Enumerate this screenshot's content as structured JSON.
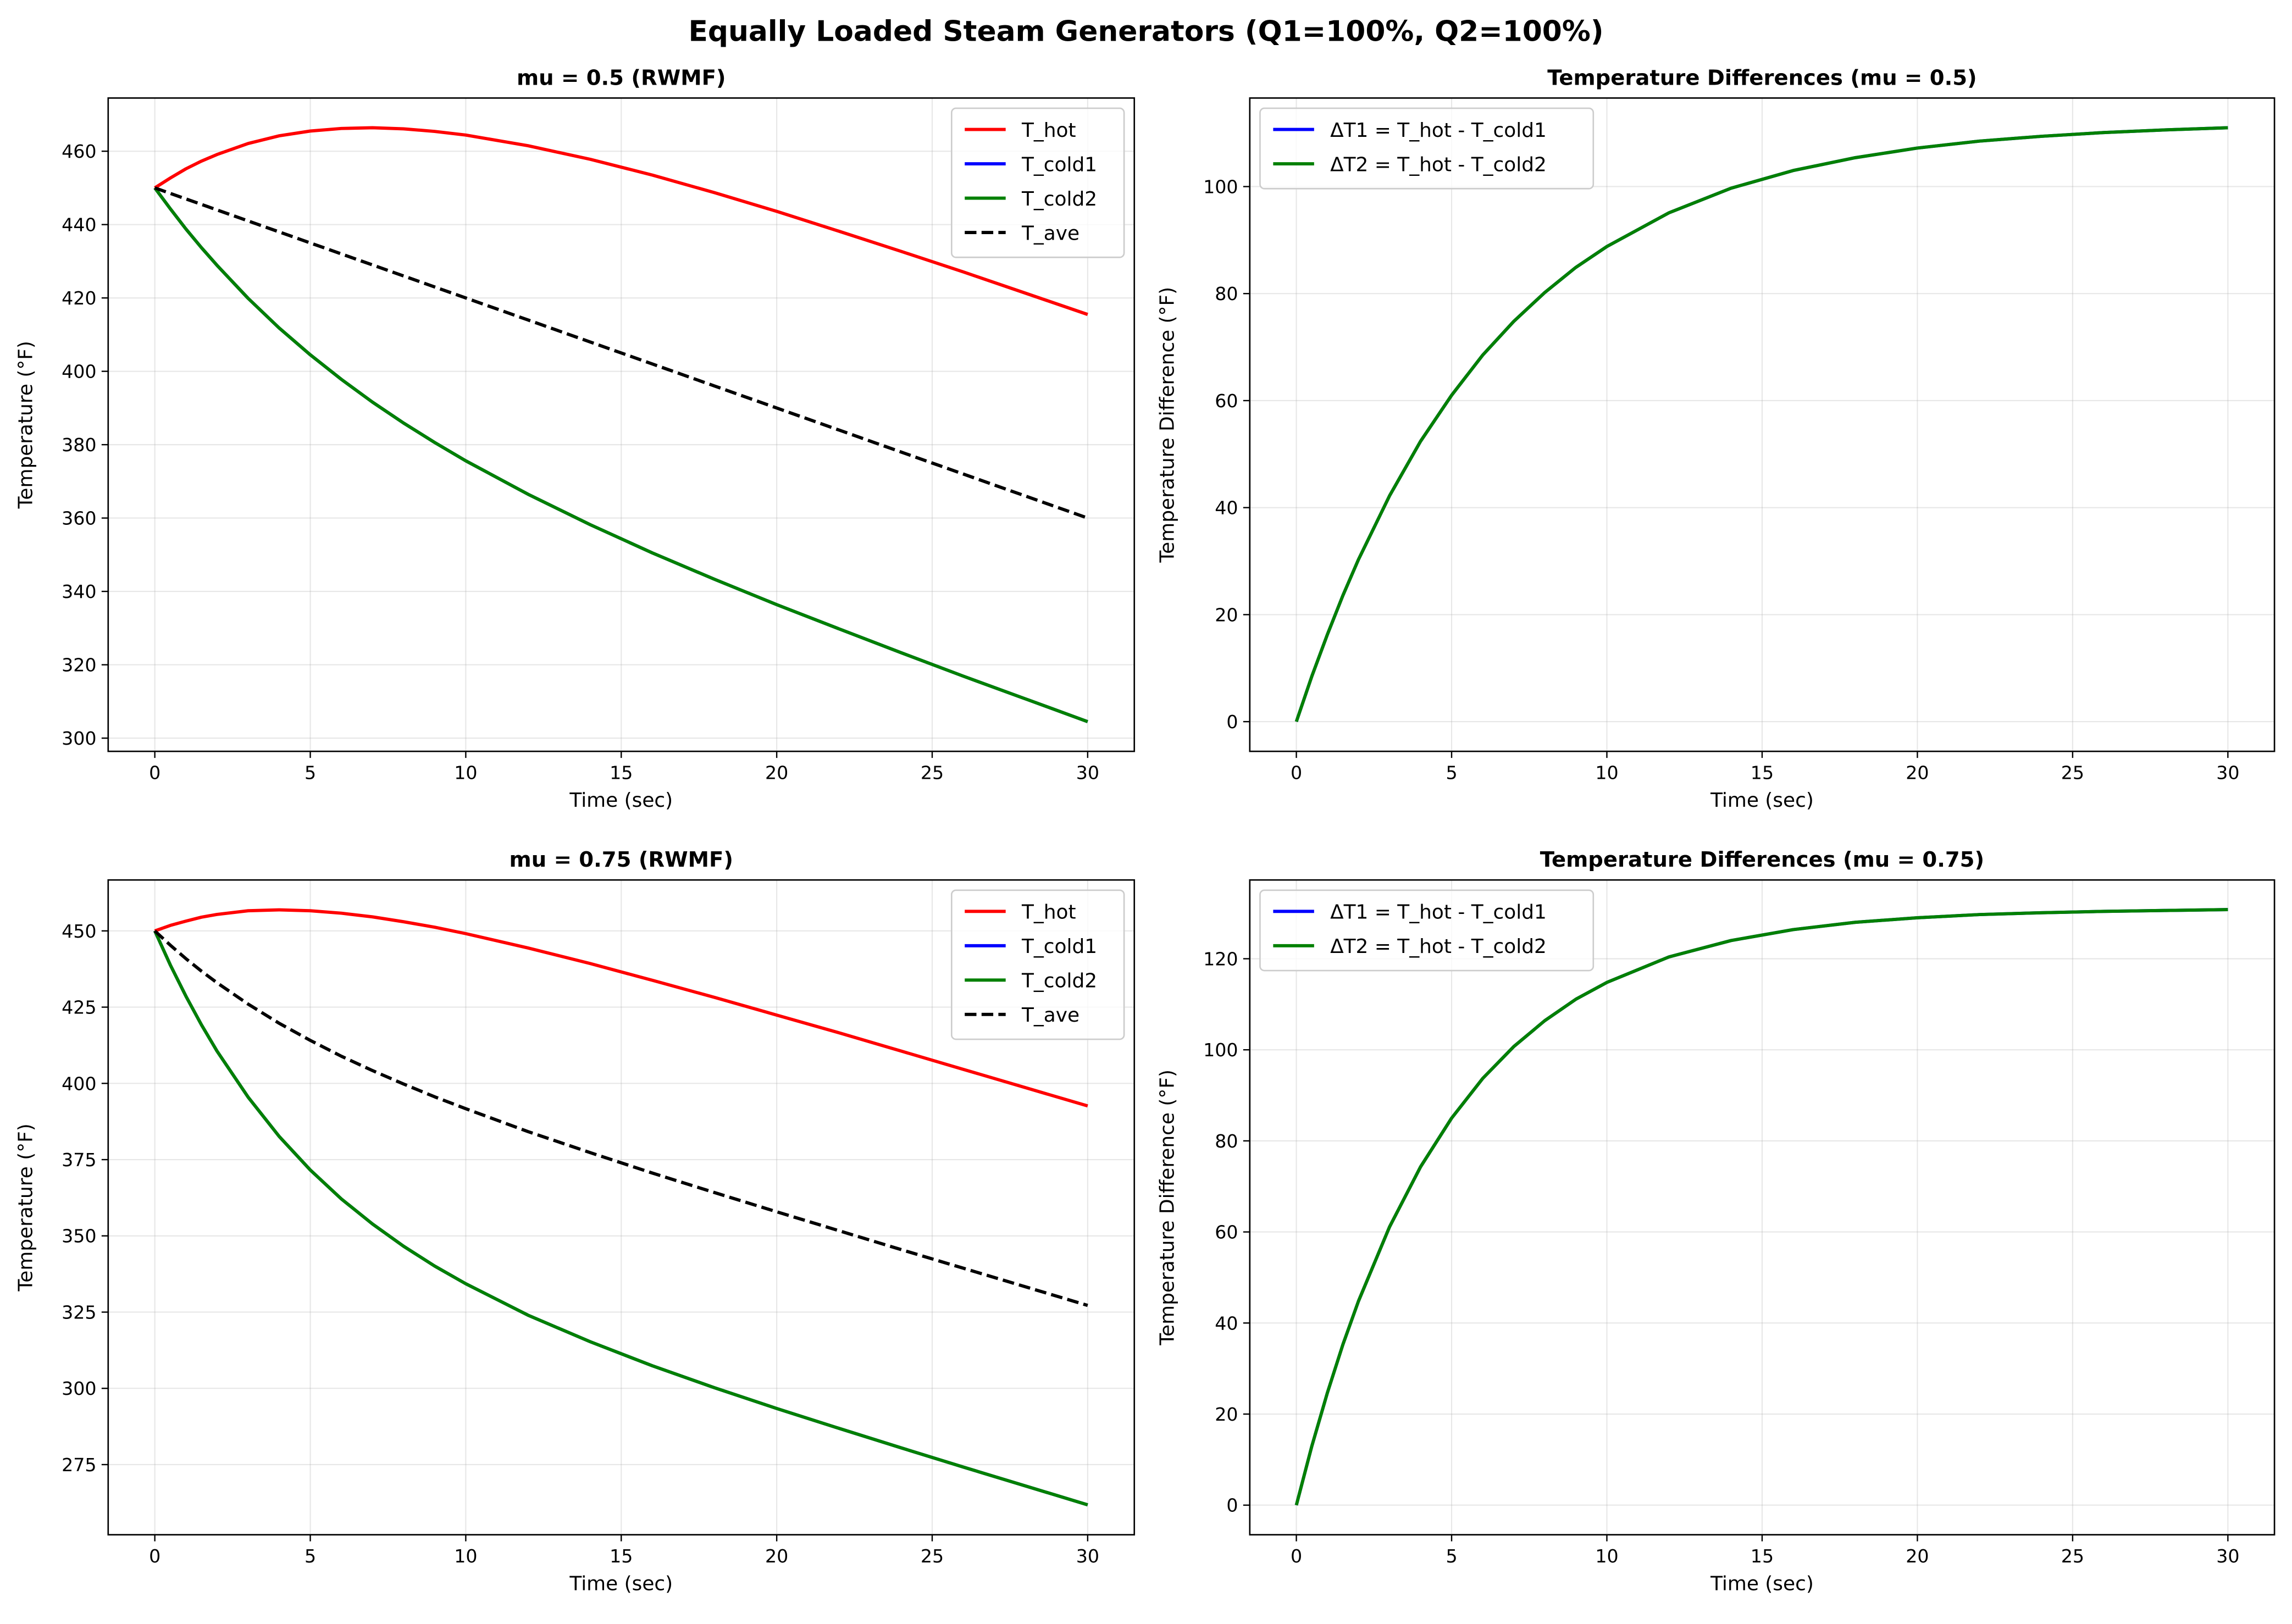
{
  "suptitle": "Equally Loaded Steam Generators (Q1=100%, Q2=100%)",
  "chart_data": [
    {
      "type": "line",
      "title": "mu = 0.5 (RWMF)",
      "xlabel": "Time (sec)",
      "ylabel": "Temperature (°F)",
      "xlim": [
        -1.5,
        31.5
      ],
      "ylim": [
        296.4,
        474.5
      ],
      "xticks": [
        0,
        5,
        10,
        15,
        20,
        25,
        30
      ],
      "yticks": [
        300,
        320,
        340,
        360,
        380,
        400,
        420,
        440,
        460
      ],
      "grid": true,
      "legend": "top-right",
      "x": [
        0,
        0.5,
        1,
        1.5,
        2,
        3,
        4,
        5,
        6,
        7,
        8,
        9,
        10,
        12,
        14,
        16,
        18,
        20,
        22,
        24,
        26,
        28,
        30
      ],
      "series": [
        {
          "name": "T_hot",
          "color": "#ff0000",
          "dash": false,
          "values": [
            450,
            452.7,
            455.2,
            457.3,
            459.1,
            462.1,
            464.2,
            465.5,
            466.2,
            466.4,
            466.1,
            465.4,
            464.4,
            461.5,
            457.8,
            453.5,
            448.7,
            443.6,
            438.2,
            432.7,
            427.1,
            421.3,
            415.5
          ]
        },
        {
          "name": "T_cold1",
          "color": "#0000ff",
          "dash": false,
          "values": [
            450,
            444.3,
            438.8,
            433.7,
            428.9,
            419.9,
            411.8,
            404.5,
            397.8,
            391.6,
            385.9,
            380.6,
            375.6,
            366.5,
            358.2,
            350.5,
            343.3,
            336.4,
            329.8,
            323.3,
            316.9,
            310.7,
            304.5
          ]
        },
        {
          "name": "T_cold2",
          "color": "#008000",
          "dash": false,
          "values": [
            450,
            444.3,
            438.8,
            433.7,
            428.9,
            419.9,
            411.8,
            404.5,
            397.8,
            391.6,
            385.9,
            380.6,
            375.6,
            366.5,
            358.2,
            350.5,
            343.3,
            336.4,
            329.8,
            323.3,
            316.9,
            310.7,
            304.5
          ]
        },
        {
          "name": "T_ave",
          "color": "#000000",
          "dash": true,
          "values": [
            450,
            448.5,
            447,
            445.5,
            444,
            441,
            438,
            435,
            432,
            429,
            426,
            423,
            420,
            414,
            408,
            402,
            396,
            390,
            384,
            378,
            372,
            366,
            360
          ]
        }
      ]
    },
    {
      "type": "line",
      "title": "Temperature Differences (mu = 0.5)",
      "xlabel": "Time (sec)",
      "ylabel": "Temperature Difference (°F)",
      "xlim": [
        -1.5,
        31.5
      ],
      "ylim": [
        -5.55,
        116.55
      ],
      "xticks": [
        0,
        5,
        10,
        15,
        20,
        25,
        30
      ],
      "yticks": [
        0,
        20,
        40,
        60,
        80,
        100
      ],
      "grid": true,
      "legend": "top-left",
      "x": [
        0,
        0.5,
        1,
        1.5,
        2,
        3,
        4,
        5,
        6,
        7,
        8,
        9,
        10,
        12,
        14,
        16,
        18,
        20,
        22,
        24,
        26,
        28,
        30
      ],
      "series": [
        {
          "name": "ΔT1 = T_hot - T_cold1",
          "color": "#0000ff",
          "dash": false,
          "values": [
            0,
            8.5,
            16.3,
            23.6,
            30.3,
            42.2,
            52.4,
            61.0,
            68.5,
            74.8,
            80.2,
            84.9,
            88.8,
            95.1,
            99.7,
            103.0,
            105.4,
            107.2,
            108.5,
            109.4,
            110.1,
            110.6,
            111.0
          ]
        },
        {
          "name": "ΔT2 = T_hot - T_cold2",
          "color": "#008000",
          "dash": false,
          "values": [
            0,
            8.5,
            16.3,
            23.6,
            30.3,
            42.2,
            52.4,
            61.0,
            68.5,
            74.8,
            80.2,
            84.9,
            88.8,
            95.1,
            99.7,
            103.0,
            105.4,
            107.2,
            108.5,
            109.4,
            110.1,
            110.6,
            111.0
          ]
        }
      ]
    },
    {
      "type": "line",
      "title": "mu = 0.75 (RWMF)",
      "xlabel": "Time (sec)",
      "ylabel": "Temperature (°F)",
      "xlim": [
        -1.5,
        31.5
      ],
      "ylim": [
        252.0,
        466.7
      ],
      "xticks": [
        0,
        5,
        10,
        15,
        20,
        25,
        30
      ],
      "yticks": [
        275,
        300,
        325,
        350,
        375,
        400,
        425,
        450
      ],
      "grid": true,
      "legend": "top-right",
      "x": [
        0,
        0.5,
        1,
        1.5,
        2,
        3,
        4,
        5,
        6,
        7,
        8,
        9,
        10,
        12,
        14,
        16,
        18,
        20,
        22,
        24,
        26,
        28,
        30
      ],
      "series": [
        {
          "name": "T_hot",
          "color": "#ff0000",
          "dash": false,
          "values": [
            450,
            451.8,
            453.2,
            454.5,
            455.4,
            456.6,
            456.9,
            456.6,
            455.8,
            454.6,
            453.0,
            451.2,
            449.1,
            444.4,
            439.3,
            433.8,
            428.2,
            422.4,
            416.6,
            410.6,
            404.6,
            398.6,
            392.6
          ]
        },
        {
          "name": "T_cold1",
          "color": "#0000ff",
          "dash": false,
          "values": [
            450,
            438.8,
            428.6,
            419.2,
            410.6,
            395.5,
            382.6,
            371.6,
            362.1,
            353.9,
            346.6,
            340.1,
            334.3,
            324.0,
            315.3,
            307.4,
            300.2,
            293.4,
            286.9,
            280.5,
            274.2,
            268.0,
            261.8
          ]
        },
        {
          "name": "T_cold2",
          "color": "#008000",
          "dash": false,
          "values": [
            450,
            438.8,
            428.6,
            419.2,
            410.6,
            395.5,
            382.6,
            371.6,
            362.1,
            353.9,
            346.6,
            340.1,
            334.3,
            324.0,
            315.3,
            307.4,
            300.2,
            293.4,
            286.9,
            280.5,
            274.2,
            268.0,
            261.8
          ]
        },
        {
          "name": "T_ave",
          "color": "#000000",
          "dash": true,
          "values": [
            450,
            445.3,
            440.9,
            436.8,
            433.0,
            426.0,
            419.7,
            414.1,
            408.9,
            404.2,
            399.8,
            395.6,
            391.7,
            384.2,
            377.3,
            370.6,
            364.2,
            357.9,
            351.7,
            345.5,
            339.4,
            333.3,
            327.2
          ]
        }
      ]
    },
    {
      "type": "line",
      "title": "Temperature Differences (mu = 0.75)",
      "xlabel": "Time (sec)",
      "ylabel": "Temperature Difference (°F)",
      "xlim": [
        -1.5,
        31.5
      ],
      "ylim": [
        -6.5,
        137.3
      ],
      "xticks": [
        0,
        5,
        10,
        15,
        20,
        25,
        30
      ],
      "yticks": [
        0,
        20,
        40,
        60,
        80,
        100,
        120
      ],
      "grid": true,
      "legend": "top-left",
      "x": [
        0,
        0.5,
        1,
        1.5,
        2,
        3,
        4,
        5,
        6,
        7,
        8,
        9,
        10,
        12,
        14,
        16,
        18,
        20,
        22,
        24,
        26,
        28,
        30
      ],
      "series": [
        {
          "name": "ΔT1 = T_hot - T_cold1",
          "color": "#0000ff",
          "dash": false,
          "values": [
            0,
            13.0,
            24.7,
            35.3,
            44.8,
            61.1,
            74.3,
            85.0,
            93.7,
            100.7,
            106.4,
            111.1,
            114.8,
            120.4,
            124.0,
            126.4,
            128.0,
            129.0,
            129.7,
            130.1,
            130.4,
            130.6,
            130.8
          ]
        },
        {
          "name": "ΔT2 = T_hot - T_cold2",
          "color": "#008000",
          "dash": false,
          "values": [
            0,
            13.0,
            24.7,
            35.3,
            44.8,
            61.1,
            74.3,
            85.0,
            93.7,
            100.7,
            106.4,
            111.1,
            114.8,
            120.4,
            124.0,
            126.4,
            128.0,
            129.0,
            129.7,
            130.1,
            130.4,
            130.6,
            130.8
          ]
        }
      ]
    }
  ]
}
